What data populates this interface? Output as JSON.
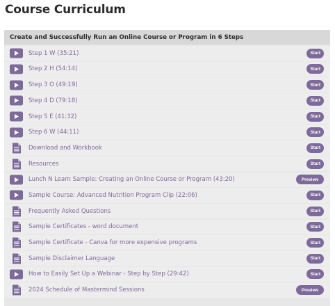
{
  "page": {
    "title": "Course Curriculum"
  },
  "colors": {
    "accent": "#7d6a9a",
    "row_bg": "#ededed",
    "header_bg": "#d8d8d8",
    "section_bg": "#e7e7e7"
  },
  "section": {
    "title": "Create and Successfully Run an Online Course or Program in 6 Steps",
    "lectures": [
      {
        "type": "video",
        "icon": "play-icon",
        "title": "Step 1 W (35:21)",
        "action": "Start"
      },
      {
        "type": "video",
        "icon": "play-icon",
        "title": "Step 2 H (54:14)",
        "action": "Start"
      },
      {
        "type": "video",
        "icon": "play-icon",
        "title": "Step 3 O (49:19)",
        "action": "Start"
      },
      {
        "type": "video",
        "icon": "play-icon",
        "title": "Step 4 D (79:18)",
        "action": "Start"
      },
      {
        "type": "video",
        "icon": "play-icon",
        "title": "Step 5 E (41:32)",
        "action": "Start"
      },
      {
        "type": "video",
        "icon": "play-icon",
        "title": "Step 6 W (44:11)",
        "action": "Start"
      },
      {
        "type": "document",
        "icon": "document-icon",
        "title": "Download and Workbook",
        "action": "Start"
      },
      {
        "type": "document",
        "icon": "document-icon",
        "title": "Resources",
        "action": "Start"
      },
      {
        "type": "video",
        "icon": "play-icon",
        "title": "Lunch N Learn Sample: Creating an Online Course or Program (43:20)",
        "action": "Preview"
      },
      {
        "type": "video",
        "icon": "play-icon",
        "title": "Sample Course: Advanced Nutrition Program Clip (22:06)",
        "action": "Start"
      },
      {
        "type": "document",
        "icon": "document-icon",
        "title": "Frequently Asked Questions",
        "action": "Start"
      },
      {
        "type": "document",
        "icon": "document-icon",
        "title": "Sample Certificates - word document",
        "action": "Start"
      },
      {
        "type": "document",
        "icon": "document-icon",
        "title": "Sample Certificate - Canva for more expensive programs",
        "action": "Start"
      },
      {
        "type": "document",
        "icon": "document-icon",
        "title": "Sample Disclaimer Language",
        "action": "Start"
      },
      {
        "type": "video",
        "icon": "play-icon",
        "title": "How to Easily Set Up a Webinar - Step by Step (29:42)",
        "action": "Start"
      },
      {
        "type": "document",
        "icon": "document-icon",
        "title": "2024 Schedule of Mastermind Sessions",
        "action": "Preview"
      }
    ]
  }
}
